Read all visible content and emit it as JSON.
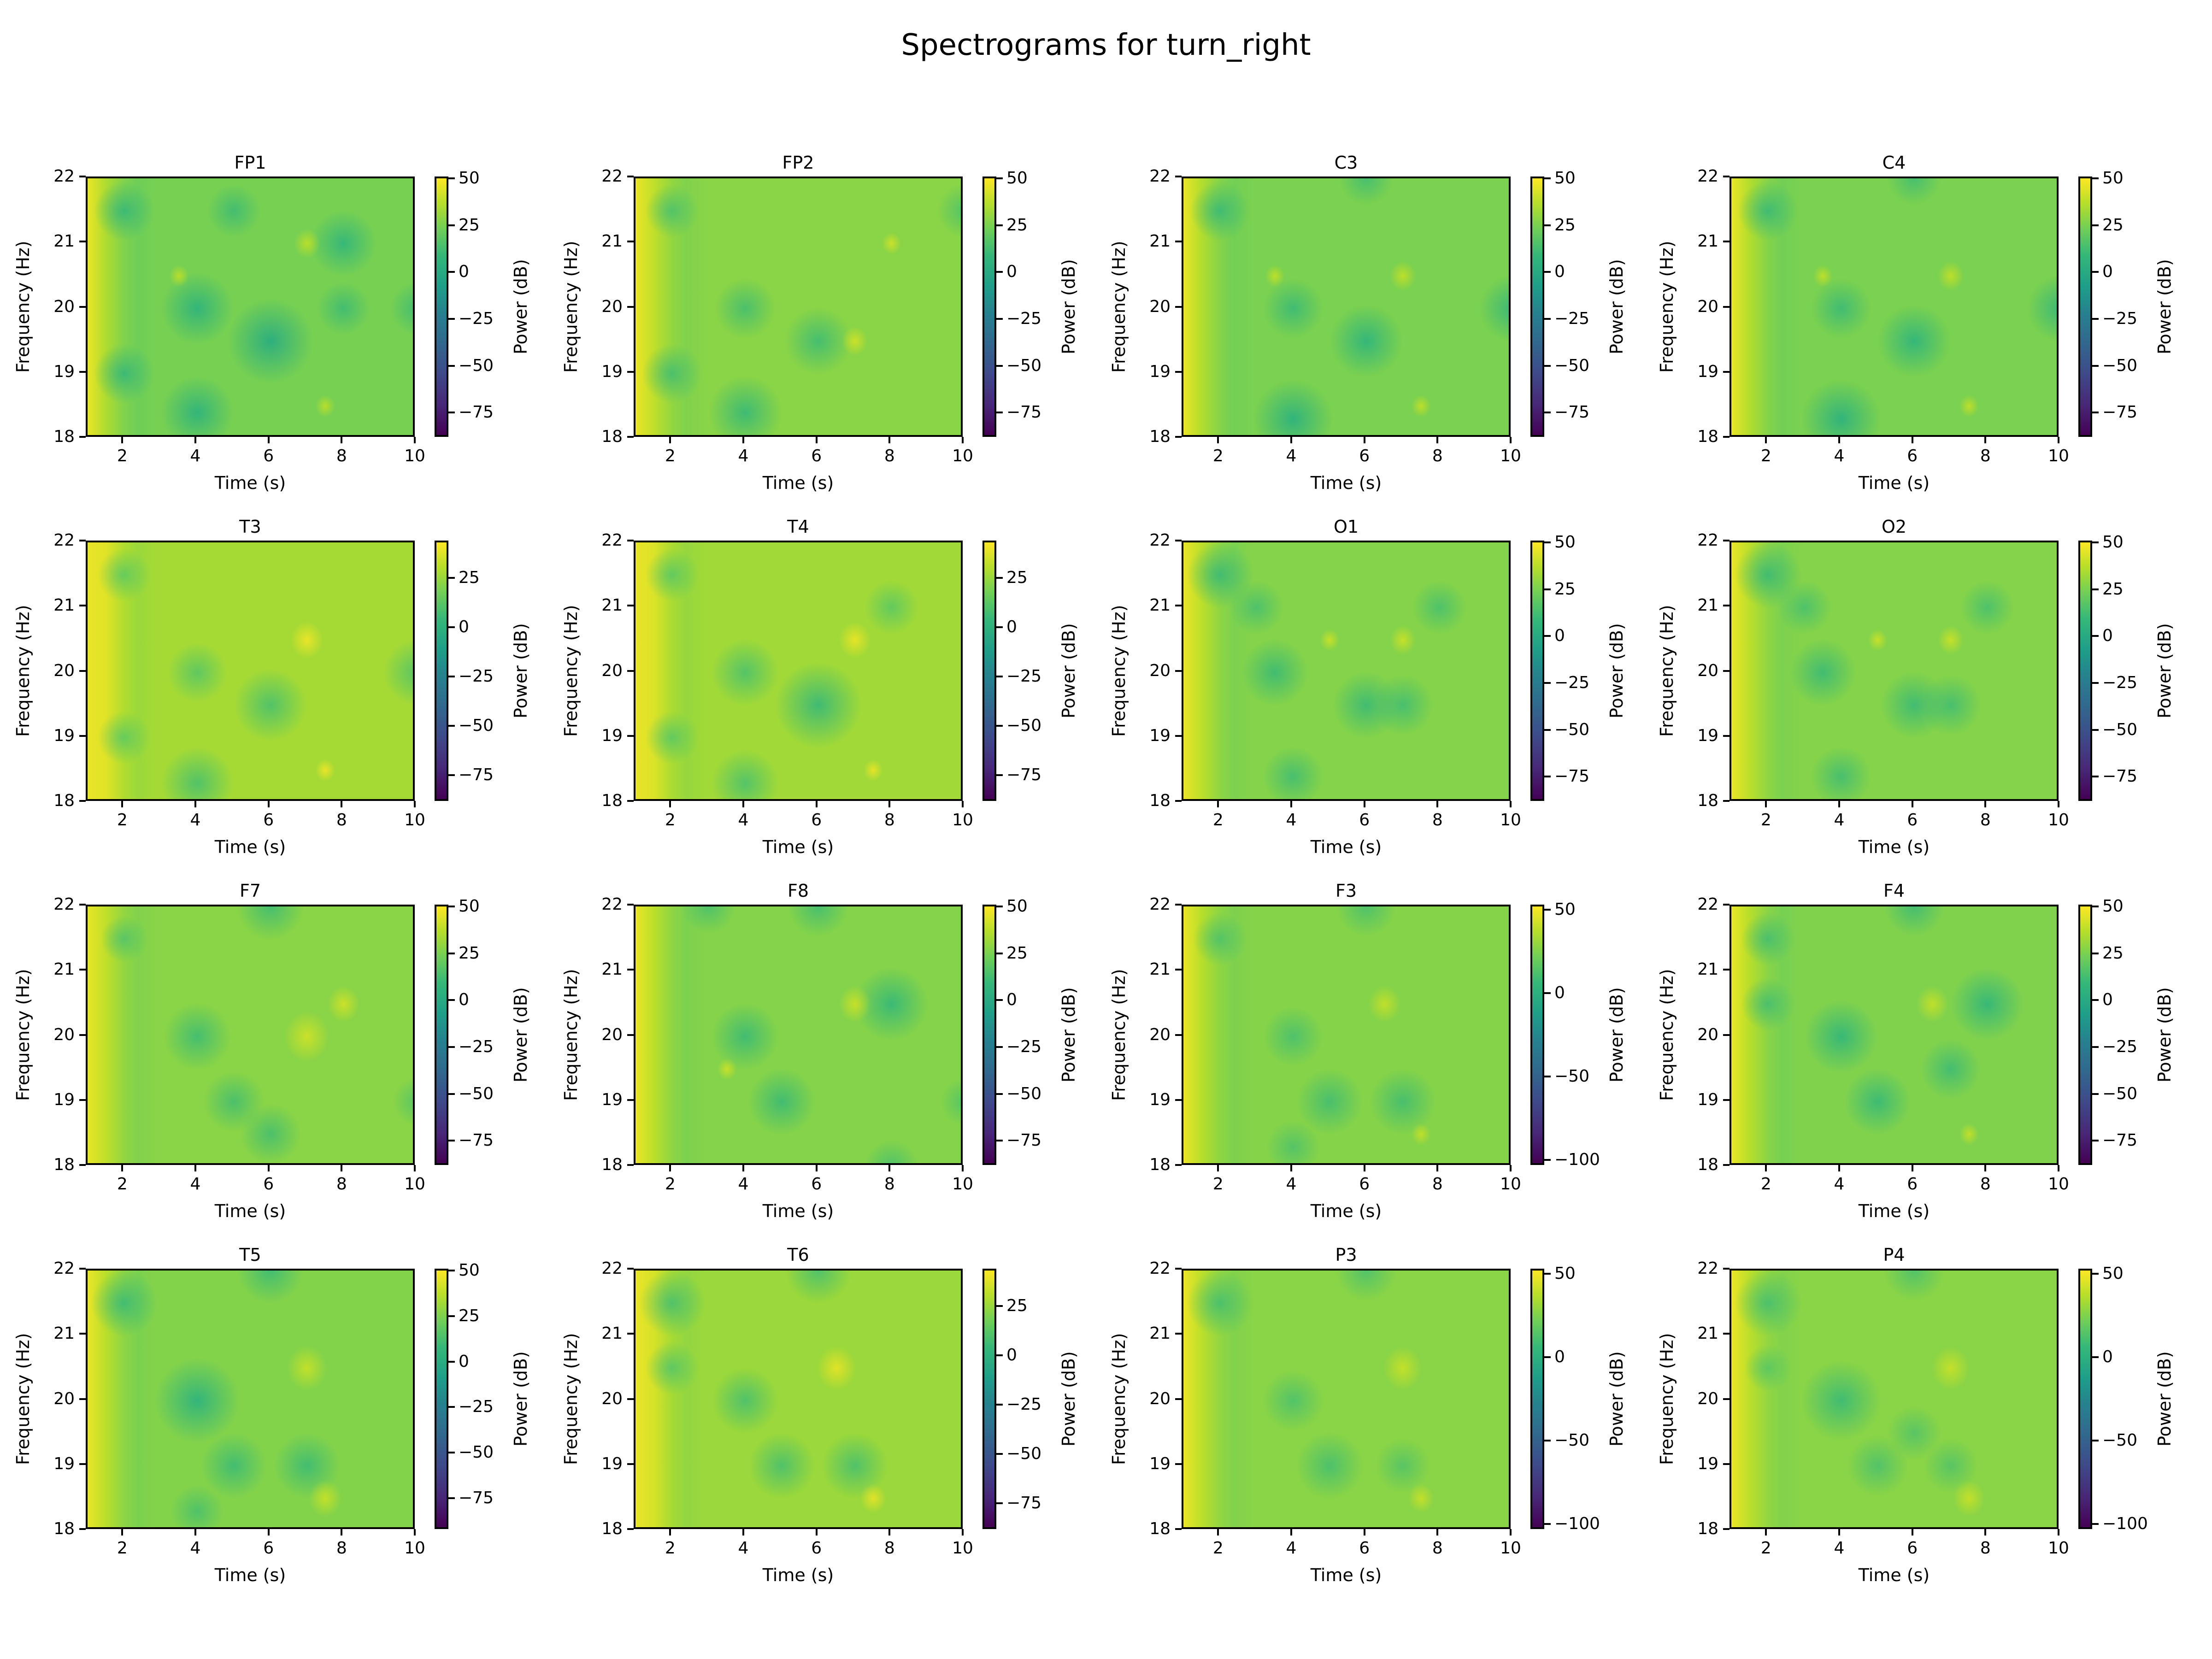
{
  "figure": {
    "title": "Spectrograms for turn_right"
  },
  "axes_common": {
    "xlabel": "Time (s)",
    "ylabel": "Frequency (Hz)",
    "cbar_label": "Power (dB)",
    "x_ticks": [
      "2",
      "4",
      "6",
      "8",
      "10"
    ],
    "y_ticks": [
      "18",
      "19",
      "20",
      "21",
      "22"
    ]
  },
  "chart_data": {
    "type": "heatmap",
    "title": "Spectrograms for turn_right",
    "xlabel": "Time (s)",
    "ylabel": "Frequency (Hz)",
    "colorbar_label": "Power (dB)",
    "colormap": "viridis",
    "xlim": [
      1,
      10
    ],
    "ylim": [
      18,
      22
    ],
    "x_ticks": [
      2,
      4,
      6,
      8,
      10
    ],
    "y_ticks": [
      18,
      19,
      20,
      21,
      22
    ],
    "grid": [
      4,
      4
    ],
    "panels": [
      {
        "channel": "FP1",
        "clim": [
          -88,
          51
        ],
        "cbar_ticks": [
          50,
          25,
          0,
          -25,
          -50,
          -75
        ],
        "level": 22,
        "low": [
          [
            2,
            21.5,
            0.5
          ],
          [
            4,
            20,
            0.7
          ],
          [
            6,
            19.5,
            0.9
          ],
          [
            4,
            18.4,
            0.7
          ],
          [
            2,
            19,
            0.5
          ],
          [
            8,
            21,
            0.6
          ],
          [
            8,
            20,
            0.4
          ],
          [
            10,
            20,
            0.4
          ],
          [
            5,
            21.5,
            0.4
          ]
        ],
        "high": [
          [
            7,
            21,
            0.4
          ],
          [
            3.5,
            20.5,
            0.3
          ],
          [
            7.5,
            18.5,
            0.3
          ]
        ]
      },
      {
        "channel": "FP2",
        "clim": [
          -88,
          51
        ],
        "cbar_ticks": [
          50,
          25,
          0,
          -25,
          -50,
          -75
        ],
        "level": 26,
        "low": [
          [
            2,
            21.5,
            0.4
          ],
          [
            4,
            20,
            0.5
          ],
          [
            6,
            19.5,
            0.6
          ],
          [
            4,
            18.4,
            0.7
          ],
          [
            2,
            19,
            0.5
          ],
          [
            10,
            21.5,
            0.4
          ]
        ],
        "high": [
          [
            7,
            19.5,
            0.4
          ],
          [
            8,
            21,
            0.3
          ]
        ]
      },
      {
        "channel": "C3",
        "clim": [
          -88,
          51
        ],
        "cbar_ticks": [
          50,
          25,
          0,
          -25,
          -50,
          -75
        ],
        "level": 23,
        "low": [
          [
            2,
            21.5,
            0.5
          ],
          [
            4,
            20,
            0.5
          ],
          [
            6,
            19.5,
            0.7
          ],
          [
            4,
            18.3,
            0.8
          ],
          [
            10,
            20,
            0.6
          ],
          [
            6,
            22,
            0.4
          ]
        ],
        "high": [
          [
            7,
            20.5,
            0.4
          ],
          [
            3.5,
            20.5,
            0.3
          ],
          [
            7.5,
            18.5,
            0.3
          ]
        ]
      },
      {
        "channel": "C4",
        "clim": [
          -88,
          51
        ],
        "cbar_ticks": [
          50,
          25,
          0,
          -25,
          -50,
          -75
        ],
        "level": 23,
        "low": [
          [
            2,
            21.5,
            0.5
          ],
          [
            4,
            20,
            0.5
          ],
          [
            6,
            19.5,
            0.7
          ],
          [
            4,
            18.3,
            0.8
          ],
          [
            10,
            20,
            0.6
          ],
          [
            6,
            22,
            0.4
          ]
        ],
        "high": [
          [
            7,
            20.5,
            0.4
          ],
          [
            3.5,
            20.5,
            0.3
          ],
          [
            7.5,
            18.5,
            0.3
          ]
        ]
      },
      {
        "channel": "T3",
        "clim": [
          -88,
          44
        ],
        "cbar_ticks": [
          25,
          0,
          -25,
          -50,
          -75
        ],
        "level": 26,
        "low": [
          [
            2,
            21.5,
            0.4
          ],
          [
            4,
            20,
            0.5
          ],
          [
            6,
            19.5,
            0.7
          ],
          [
            4,
            18.3,
            0.7
          ],
          [
            10,
            20,
            0.6
          ],
          [
            2,
            19,
            0.4
          ]
        ],
        "high": [
          [
            7,
            20.5,
            0.5
          ],
          [
            7.5,
            18.5,
            0.3
          ]
        ]
      },
      {
        "channel": "T4",
        "clim": [
          -88,
          44
        ],
        "cbar_ticks": [
          25,
          0,
          -25,
          -50,
          -75
        ],
        "level": 25,
        "low": [
          [
            2,
            21.5,
            0.4
          ],
          [
            4,
            20,
            0.6
          ],
          [
            6,
            19.5,
            0.9
          ],
          [
            4,
            18.3,
            0.6
          ],
          [
            8,
            21,
            0.4
          ],
          [
            2,
            19,
            0.4
          ]
        ],
        "high": [
          [
            7,
            20.5,
            0.5
          ],
          [
            7.5,
            18.5,
            0.3
          ]
        ]
      },
      {
        "channel": "O1",
        "clim": [
          -88,
          51
        ],
        "cbar_ticks": [
          50,
          25,
          0,
          -25,
          -50,
          -75
        ],
        "level": 25,
        "low": [
          [
            2,
            21.5,
            0.6
          ],
          [
            3.5,
            20,
            0.6
          ],
          [
            6,
            19.5,
            0.6
          ],
          [
            7,
            19.5,
            0.5
          ],
          [
            4,
            18.4,
            0.5
          ],
          [
            8,
            21,
            0.4
          ],
          [
            3,
            21,
            0.4
          ]
        ],
        "high": [
          [
            7,
            20.5,
            0.4
          ],
          [
            5,
            20.5,
            0.3
          ]
        ]
      },
      {
        "channel": "O2",
        "clim": [
          -88,
          51
        ],
        "cbar_ticks": [
          50,
          25,
          0,
          -25,
          -50,
          -75
        ],
        "level": 25,
        "low": [
          [
            2,
            21.5,
            0.6
          ],
          [
            3.5,
            20,
            0.6
          ],
          [
            6,
            19.5,
            0.6
          ],
          [
            7,
            19.5,
            0.5
          ],
          [
            4,
            18.4,
            0.5
          ],
          [
            8,
            21,
            0.4
          ],
          [
            3,
            21,
            0.4
          ]
        ],
        "high": [
          [
            7,
            20.5,
            0.4
          ],
          [
            5,
            20.5,
            0.3
          ]
        ]
      },
      {
        "channel": "F7",
        "clim": [
          -88,
          51
        ],
        "cbar_ticks": [
          50,
          25,
          0,
          -25,
          -50,
          -75
        ],
        "level": 26,
        "low": [
          [
            4,
            20,
            0.6
          ],
          [
            5,
            19,
            0.5
          ],
          [
            6,
            18.5,
            0.5
          ],
          [
            6,
            22,
            0.6
          ],
          [
            2,
            21.5,
            0.3
          ],
          [
            10,
            19,
            0.3
          ]
        ],
        "high": [
          [
            7,
            20,
            0.7
          ],
          [
            8,
            20.5,
            0.5
          ]
        ]
      },
      {
        "channel": "F8",
        "clim": [
          -88,
          51
        ],
        "cbar_ticks": [
          50,
          25,
          0,
          -25,
          -50,
          -75
        ],
        "level": 25,
        "low": [
          [
            4,
            20,
            0.6
          ],
          [
            5,
            19,
            0.6
          ],
          [
            8,
            20.5,
            0.7
          ],
          [
            6,
            22,
            0.5
          ],
          [
            3,
            22,
            0.4
          ],
          [
            8,
            18,
            0.4
          ],
          [
            10,
            19,
            0.3
          ]
        ],
        "high": [
          [
            7,
            20.5,
            0.5
          ],
          [
            3.5,
            19.5,
            0.3
          ]
        ]
      },
      {
        "channel": "F3",
        "clim": [
          -103,
          53
        ],
        "cbar_ticks": [
          50,
          0,
          -50,
          -100
        ],
        "level": 24,
        "low": [
          [
            2,
            21.5,
            0.4
          ],
          [
            4,
            20,
            0.5
          ],
          [
            5,
            19,
            0.6
          ],
          [
            7,
            19,
            0.6
          ],
          [
            6,
            22,
            0.5
          ],
          [
            4,
            18.3,
            0.4
          ]
        ],
        "high": [
          [
            6.5,
            20.5,
            0.5
          ],
          [
            7.5,
            18.5,
            0.3
          ]
        ]
      },
      {
        "channel": "F4",
        "clim": [
          -88,
          51
        ],
        "cbar_ticks": [
          50,
          25,
          0,
          -25,
          -50,
          -75
        ],
        "level": 24,
        "low": [
          [
            2,
            21.5,
            0.4
          ],
          [
            4,
            20,
            0.7
          ],
          [
            5,
            19,
            0.6
          ],
          [
            7,
            19.5,
            0.5
          ],
          [
            8,
            20.5,
            0.7
          ],
          [
            6,
            22,
            0.5
          ],
          [
            2,
            20.5,
            0.4
          ]
        ],
        "high": [
          [
            6.5,
            20.5,
            0.5
          ],
          [
            7.5,
            18.5,
            0.3
          ]
        ]
      },
      {
        "channel": "T5",
        "clim": [
          -92,
          51
        ],
        "cbar_ticks": [
          50,
          25,
          0,
          -25,
          -50,
          -75
        ],
        "level": 24,
        "low": [
          [
            2,
            21.5,
            0.6
          ],
          [
            4,
            20,
            0.9
          ],
          [
            5,
            19,
            0.6
          ],
          [
            7,
            19,
            0.6
          ],
          [
            6,
            22,
            0.6
          ],
          [
            4,
            18.3,
            0.4
          ]
        ],
        "high": [
          [
            7,
            20.5,
            0.6
          ],
          [
            7.5,
            18.5,
            0.5
          ]
        ]
      },
      {
        "channel": "T6",
        "clim": [
          -88,
          44
        ],
        "cbar_ticks": [
          25,
          0,
          -25,
          -50,
          -75
        ],
        "level": 24,
        "low": [
          [
            2,
            21.5,
            0.6
          ],
          [
            4,
            20,
            0.6
          ],
          [
            5,
            19,
            0.6
          ],
          [
            7,
            19,
            0.6
          ],
          [
            6,
            22,
            0.6
          ],
          [
            2,
            20.5,
            0.4
          ]
        ],
        "high": [
          [
            6.5,
            20.5,
            0.6
          ],
          [
            7.5,
            18.5,
            0.4
          ]
        ]
      },
      {
        "channel": "P3",
        "clim": [
          -103,
          53
        ],
        "cbar_ticks": [
          50,
          0,
          -50,
          -100
        ],
        "level": 25,
        "low": [
          [
            2,
            21.5,
            0.6
          ],
          [
            4,
            20,
            0.5
          ],
          [
            5,
            19,
            0.6
          ],
          [
            7,
            19,
            0.4
          ],
          [
            6,
            22,
            0.5
          ]
        ],
        "high": [
          [
            7,
            20.5,
            0.6
          ],
          [
            7.5,
            18.5,
            0.4
          ]
        ]
      },
      {
        "channel": "P4",
        "clim": [
          -103,
          53
        ],
        "cbar_ticks": [
          50,
          0,
          -50,
          -100
        ],
        "level": 25,
        "low": [
          [
            2,
            21.5,
            0.6
          ],
          [
            4,
            20,
            0.8
          ],
          [
            5,
            19,
            0.5
          ],
          [
            6,
            19.5,
            0.4
          ],
          [
            7,
            19,
            0.4
          ],
          [
            6,
            22,
            0.5
          ],
          [
            2,
            20.5,
            0.3
          ]
        ],
        "high": [
          [
            7,
            20.5,
            0.6
          ],
          [
            7.5,
            18.5,
            0.5
          ]
        ]
      }
    ]
  }
}
